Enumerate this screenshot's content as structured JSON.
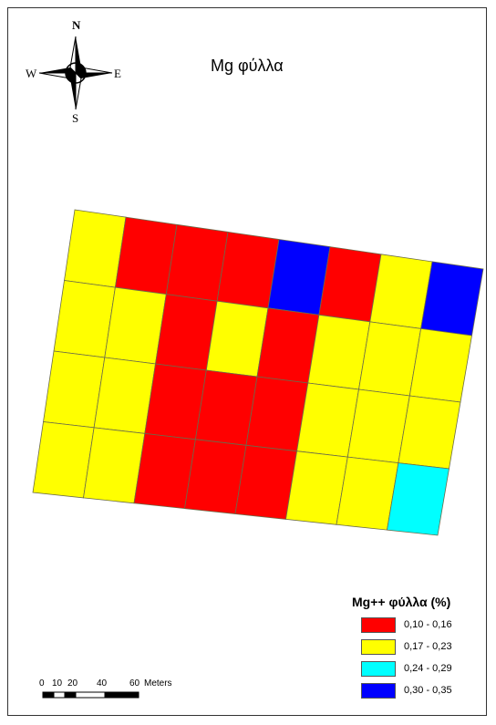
{
  "title": "Mg φύλλα",
  "compass": {
    "north": "N",
    "south": "S",
    "east": "E",
    "west": "W"
  },
  "legend": {
    "title": "Mg++ φύλλα (%)",
    "classes": [
      {
        "label": "0,10 - 0,16",
        "color": "#ff0000"
      },
      {
        "label": "0,17 - 0,23",
        "color": "#ffff00"
      },
      {
        "label": "0,24 - 0,29",
        "color": "#00ffff"
      },
      {
        "label": "0,30 - 0,35",
        "color": "#0000ff"
      }
    ]
  },
  "scalebar": {
    "ticks": [
      "0",
      "10",
      "20",
      "40",
      "60"
    ],
    "unit": "Meters"
  },
  "grid": {
    "rows": 4,
    "cols": 8,
    "cells": [
      [
        1,
        0,
        0,
        0,
        3,
        0,
        1,
        3
      ],
      [
        1,
        1,
        0,
        1,
        0,
        1,
        1,
        1
      ],
      [
        1,
        1,
        0,
        0,
        0,
        1,
        1,
        1
      ],
      [
        1,
        1,
        0,
        0,
        0,
        1,
        1,
        2
      ]
    ]
  }
}
